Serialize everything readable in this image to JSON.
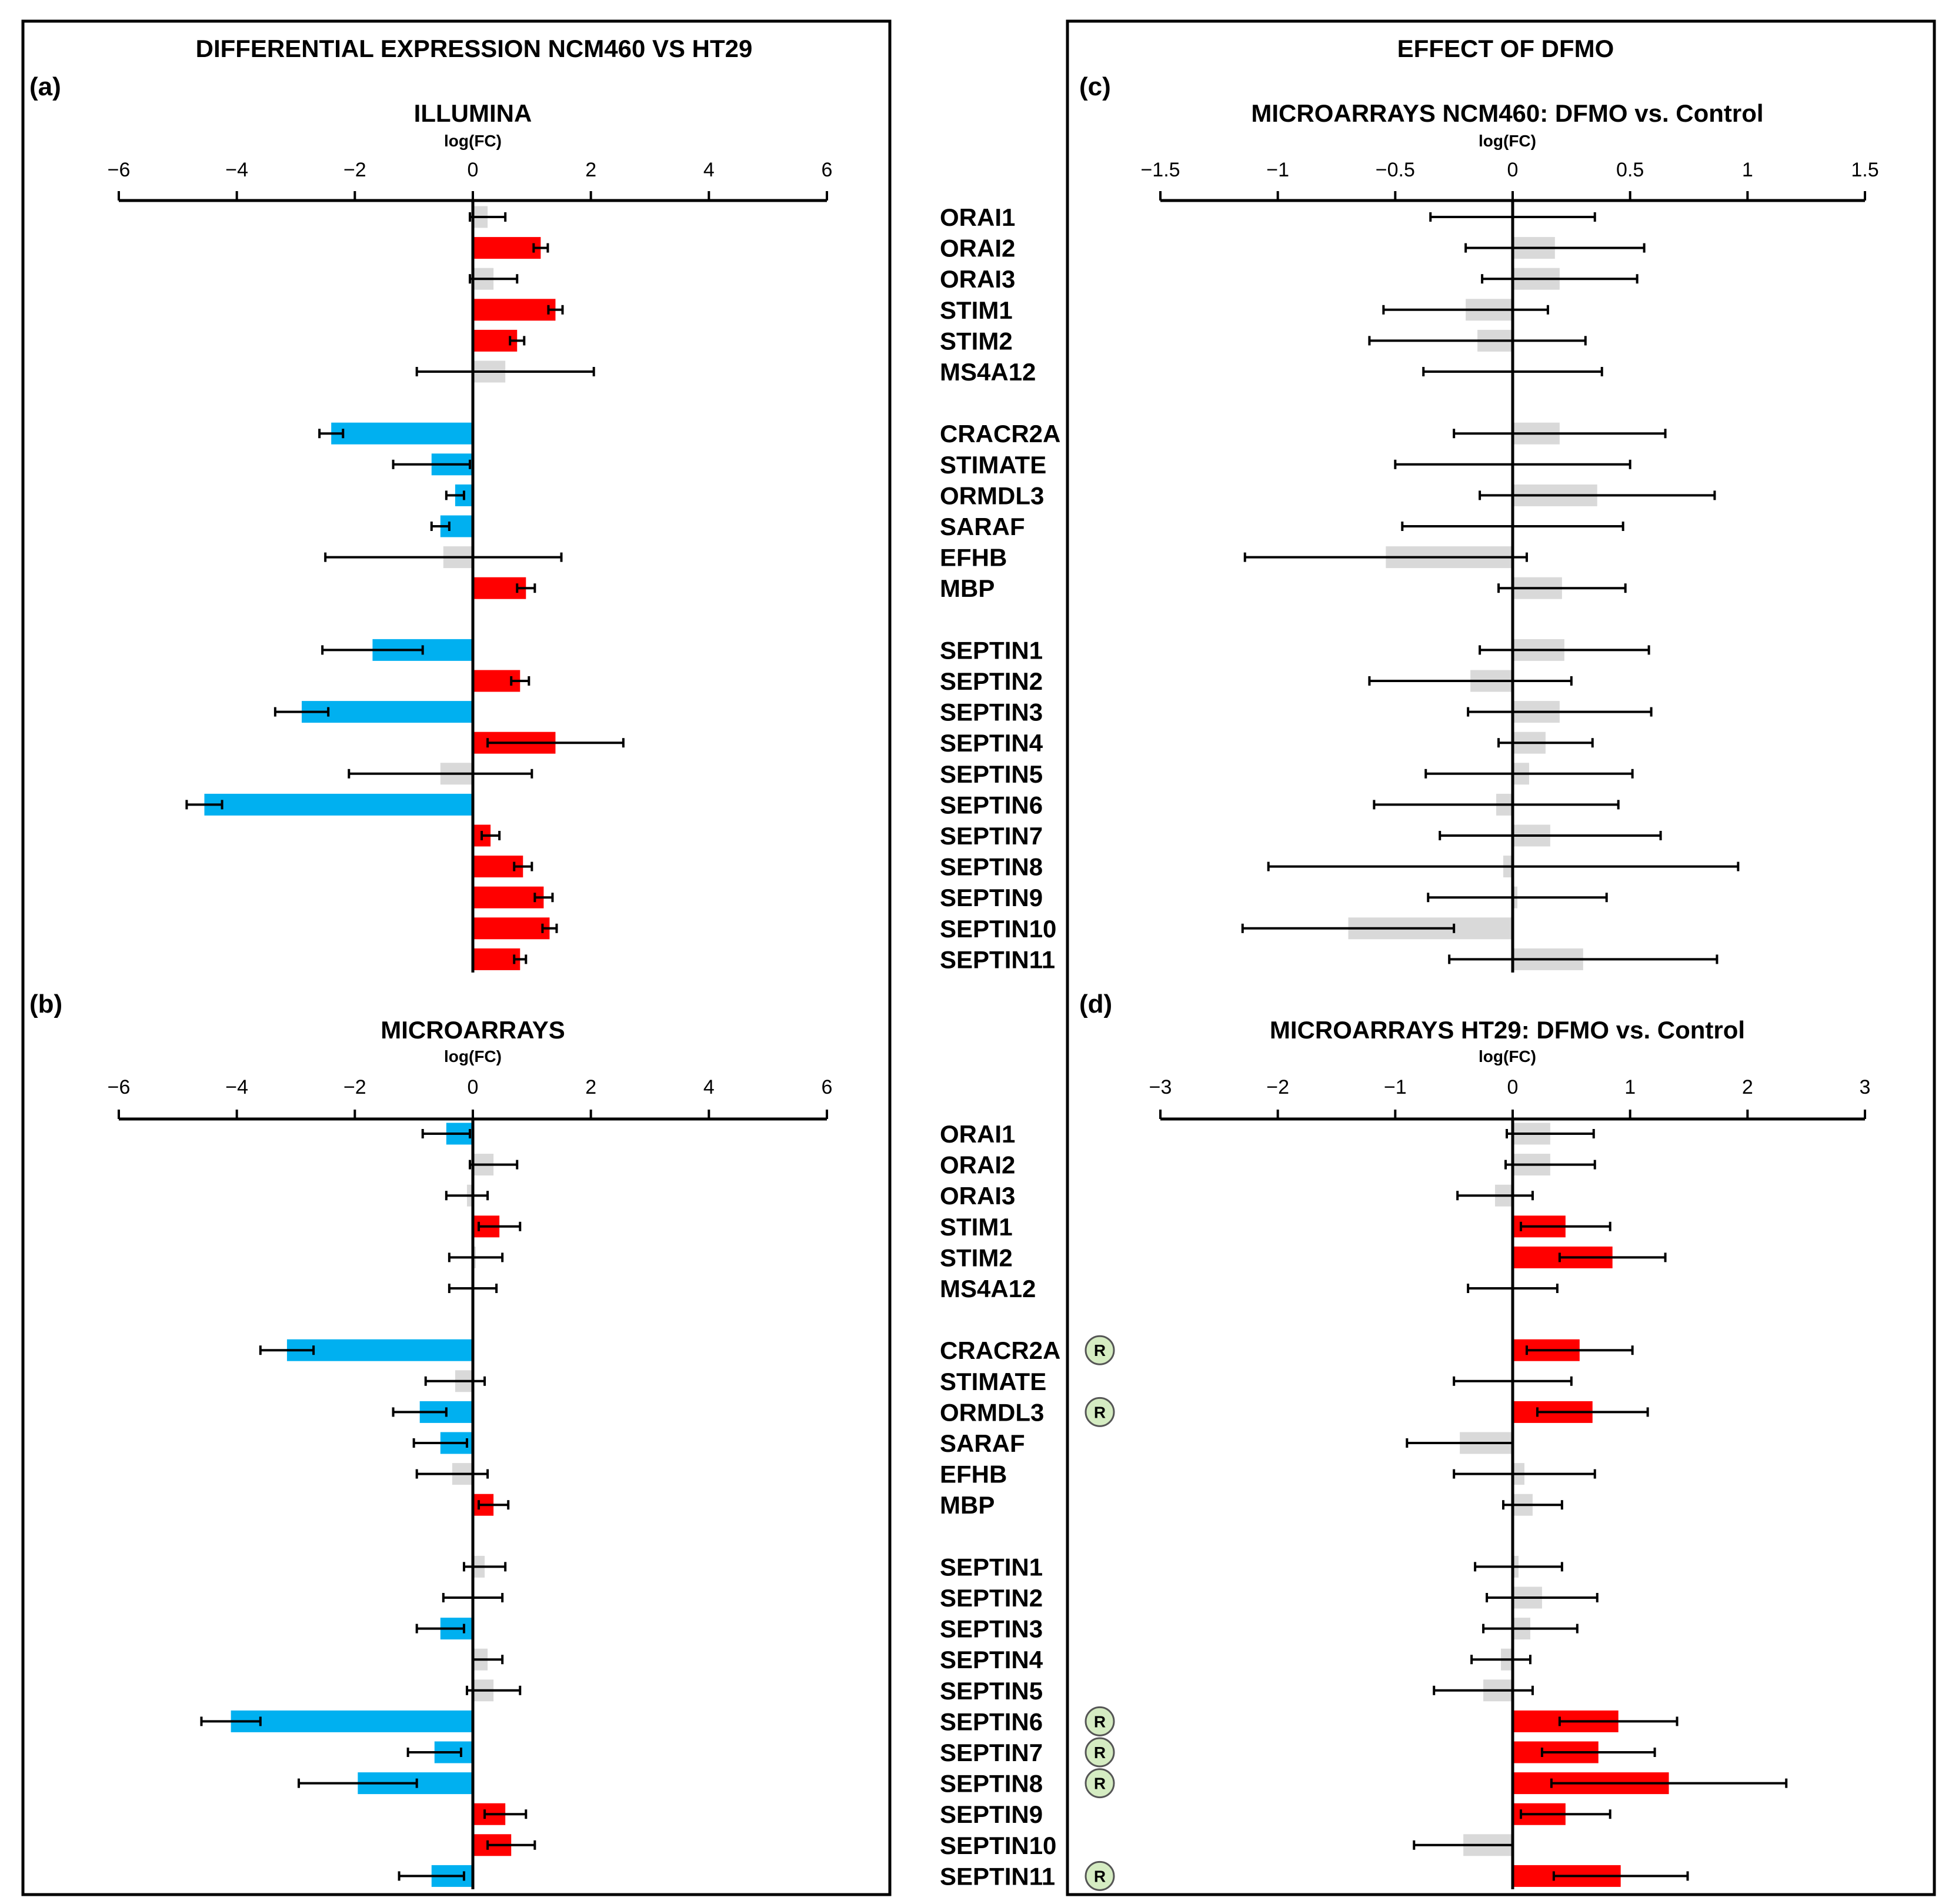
{
  "left_title": "DIFFERENTIAL EXPRESSION NCM460 VS HT29",
  "right_title": "EFFECT OF DFMO",
  "colors": {
    "up": "#ff0000",
    "down": "#00b0f0",
    "ns": "#d9d9d9",
    "badge_fill": "#d5ecc2",
    "badge_stroke": "#555555"
  },
  "chart_data": [
    {
      "id": "a",
      "panel_label": "(a)",
      "type": "bar",
      "orientation": "horizontal",
      "title": "ILLUMINA",
      "xlabel": "log(FC)",
      "xlim": [
        -6,
        6
      ],
      "xticks": [
        -6,
        -4,
        -2,
        0,
        2,
        4,
        6
      ],
      "xtick_labels": [
        "−6",
        "−4",
        "−2",
        "0",
        "2",
        "4",
        "6"
      ],
      "show_gene_labels": false,
      "bars": [
        {
          "v": 0.25,
          "e": 0.3,
          "c": "ns"
        },
        {
          "v": 1.15,
          "e": 0.12,
          "c": "up"
        },
        {
          "v": 0.35,
          "e": 0.4,
          "c": "ns"
        },
        {
          "v": 1.4,
          "e": 0.12,
          "c": "up"
        },
        {
          "v": 0.75,
          "e": 0.12,
          "c": "up"
        },
        {
          "v": 0.55,
          "e": 1.5,
          "c": "ns"
        },
        {
          "v": -2.4,
          "e": 0.2,
          "c": "down"
        },
        {
          "v": -0.7,
          "e": 0.65,
          "c": "down"
        },
        {
          "v": -0.3,
          "e": 0.15,
          "c": "down"
        },
        {
          "v": -0.55,
          "e": 0.15,
          "c": "down"
        },
        {
          "v": -0.5,
          "e": 2.0,
          "c": "ns"
        },
        {
          "v": 0.9,
          "e": 0.15,
          "c": "up"
        },
        {
          "v": -1.7,
          "e": 0.85,
          "c": "down"
        },
        {
          "v": 0.8,
          "e": 0.15,
          "c": "up"
        },
        {
          "v": -2.9,
          "e": 0.45,
          "c": "down"
        },
        {
          "v": 1.4,
          "e": 1.15,
          "c": "up"
        },
        {
          "v": -0.55,
          "e": 1.55,
          "c": "ns"
        },
        {
          "v": -4.55,
          "e": 0.3,
          "c": "down"
        },
        {
          "v": 0.3,
          "e": 0.15,
          "c": "up"
        },
        {
          "v": 0.85,
          "e": 0.15,
          "c": "up"
        },
        {
          "v": 1.2,
          "e": 0.15,
          "c": "up"
        },
        {
          "v": 1.3,
          "e": 0.12,
          "c": "up"
        },
        {
          "v": 0.8,
          "e": 0.1,
          "c": "up"
        }
      ]
    },
    {
      "id": "b",
      "panel_label": "(b)",
      "type": "bar",
      "orientation": "horizontal",
      "title": "MICROARRAYS",
      "xlabel": "log(FC)",
      "xlim": [
        -6,
        6
      ],
      "xticks": [
        -6,
        -4,
        -2,
        0,
        2,
        4,
        6
      ],
      "xtick_labels": [
        "−6",
        "−4",
        "−2",
        "0",
        "2",
        "4",
        "6"
      ],
      "show_gene_labels": false,
      "bars": [
        {
          "v": -0.45,
          "e": 0.4,
          "c": "down"
        },
        {
          "v": 0.35,
          "e": 0.4,
          "c": "ns"
        },
        {
          "v": -0.1,
          "e": 0.35,
          "c": "ns"
        },
        {
          "v": 0.45,
          "e": 0.35,
          "c": "up"
        },
        {
          "v": 0.05,
          "e": 0.45,
          "c": "ns"
        },
        {
          "v": 0.0,
          "e": 0.4,
          "c": "ns"
        },
        {
          "v": -3.15,
          "e": 0.45,
          "c": "down"
        },
        {
          "v": -0.3,
          "e": 0.5,
          "c": "ns"
        },
        {
          "v": -0.9,
          "e": 0.45,
          "c": "down"
        },
        {
          "v": -0.55,
          "e": 0.45,
          "c": "down"
        },
        {
          "v": -0.35,
          "e": 0.6,
          "c": "ns"
        },
        {
          "v": 0.35,
          "e": 0.25,
          "c": "up"
        },
        {
          "v": 0.2,
          "e": 0.35,
          "c": "ns"
        },
        {
          "v": 0.0,
          "e": 0.5,
          "c": "ns"
        },
        {
          "v": -0.55,
          "e": 0.4,
          "c": "down"
        },
        {
          "v": 0.25,
          "e": 0.25,
          "c": "ns"
        },
        {
          "v": 0.35,
          "e": 0.45,
          "c": "ns"
        },
        {
          "v": -4.1,
          "e": 0.5,
          "c": "down"
        },
        {
          "v": -0.65,
          "e": 0.45,
          "c": "down"
        },
        {
          "v": -1.95,
          "e": 1.0,
          "c": "down"
        },
        {
          "v": 0.55,
          "e": 0.35,
          "c": "up"
        },
        {
          "v": 0.65,
          "e": 0.4,
          "c": "up"
        },
        {
          "v": -0.7,
          "e": 0.55,
          "c": "down"
        }
      ]
    },
    {
      "id": "c",
      "panel_label": "(c)",
      "type": "bar",
      "orientation": "horizontal",
      "title": "MICROARRAYS NCM460: DFMO vs. Control",
      "xlabel": "log(FC)",
      "xlim": [
        -1.5,
        1.5
      ],
      "xticks": [
        -1.5,
        -1,
        -0.5,
        0,
        0.5,
        1,
        1.5
      ],
      "xtick_labels": [
        "−1.5",
        "−1",
        "−0.5",
        "0",
        "0.5",
        "1",
        "1.5"
      ],
      "show_gene_labels": true,
      "bars": [
        {
          "v": 0.0,
          "e": 0.35,
          "c": "ns"
        },
        {
          "v": 0.18,
          "e": 0.38,
          "c": "ns"
        },
        {
          "v": 0.2,
          "e": 0.33,
          "c": "ns"
        },
        {
          "v": -0.2,
          "e": 0.35,
          "c": "ns"
        },
        {
          "v": -0.15,
          "e": 0.46,
          "c": "ns"
        },
        {
          "v": 0.0,
          "e": 0.38,
          "c": "ns"
        },
        {
          "v": 0.2,
          "e": 0.45,
          "c": "ns"
        },
        {
          "v": 0.0,
          "e": 0.5,
          "c": "ns"
        },
        {
          "v": 0.36,
          "e": 0.5,
          "c": "ns"
        },
        {
          "v": 0.0,
          "e": 0.47,
          "c": "ns"
        },
        {
          "v": -0.54,
          "e": 0.6,
          "c": "ns"
        },
        {
          "v": 0.21,
          "e": 0.27,
          "c": "ns"
        },
        {
          "v": 0.22,
          "e": 0.36,
          "c": "ns"
        },
        {
          "v": -0.18,
          "e": 0.43,
          "c": "ns"
        },
        {
          "v": 0.2,
          "e": 0.39,
          "c": "ns"
        },
        {
          "v": 0.14,
          "e": 0.2,
          "c": "ns"
        },
        {
          "v": 0.07,
          "e": 0.44,
          "c": "ns"
        },
        {
          "v": -0.07,
          "e": 0.52,
          "c": "ns"
        },
        {
          "v": 0.16,
          "e": 0.47,
          "c": "ns"
        },
        {
          "v": -0.04,
          "e": 1.0,
          "c": "ns"
        },
        {
          "v": 0.02,
          "e": 0.38,
          "c": "ns"
        },
        {
          "v": -0.7,
          "e": 0.45,
          "c": "ns"
        },
        {
          "v": 0.3,
          "e": 0.57,
          "c": "ns"
        }
      ]
    },
    {
      "id": "d",
      "panel_label": "(d)",
      "type": "bar",
      "orientation": "horizontal",
      "title": "MICROARRAYS HT29: DFMO vs. Control",
      "xlabel": "log(FC)",
      "xlim": [
        -3,
        3
      ],
      "xticks": [
        -3,
        -2,
        -1,
        0,
        1,
        2,
        3
      ],
      "xtick_labels": [
        "−3",
        "−2",
        "−1",
        "0",
        "1",
        "2",
        "3"
      ],
      "show_gene_labels": true,
      "bars": [
        {
          "v": 0.32,
          "e": 0.37,
          "c": "ns"
        },
        {
          "v": 0.32,
          "e": 0.38,
          "c": "ns"
        },
        {
          "v": -0.15,
          "e": 0.32,
          "c": "ns"
        },
        {
          "v": 0.45,
          "e": 0.38,
          "c": "up"
        },
        {
          "v": 0.85,
          "e": 0.45,
          "c": "up"
        },
        {
          "v": 0.0,
          "e": 0.38,
          "c": "ns"
        },
        {
          "v": 0.57,
          "e": 0.45,
          "c": "up",
          "badge": "R"
        },
        {
          "v": 0.0,
          "e": 0.5,
          "c": "ns"
        },
        {
          "v": 0.68,
          "e": 0.47,
          "c": "up",
          "badge": "R"
        },
        {
          "v": -0.45,
          "e": 0.45,
          "c": "ns"
        },
        {
          "v": 0.1,
          "e": 0.6,
          "c": "ns"
        },
        {
          "v": 0.17,
          "e": 0.25,
          "c": "ns"
        },
        {
          "v": 0.05,
          "e": 0.37,
          "c": "ns"
        },
        {
          "v": 0.25,
          "e": 0.47,
          "c": "ns"
        },
        {
          "v": 0.15,
          "e": 0.4,
          "c": "ns"
        },
        {
          "v": -0.1,
          "e": 0.25,
          "c": "ns"
        },
        {
          "v": -0.25,
          "e": 0.42,
          "c": "ns"
        },
        {
          "v": 0.9,
          "e": 0.5,
          "c": "up",
          "badge": "R"
        },
        {
          "v": 0.73,
          "e": 0.48,
          "c": "up",
          "badge": "R"
        },
        {
          "v": 1.33,
          "e": 1.0,
          "c": "up",
          "badge": "R"
        },
        {
          "v": 0.45,
          "e": 0.38,
          "c": "up"
        },
        {
          "v": -0.42,
          "e": 0.42,
          "c": "ns"
        },
        {
          "v": 0.92,
          "e": 0.57,
          "c": "up",
          "badge": "R"
        }
      ]
    }
  ],
  "genes": [
    "ORAI1",
    "ORAI2",
    "ORAI3",
    "STIM1",
    "STIM2",
    "MS4A12",
    "CRACR2A",
    "STIMATE",
    "ORMDL3",
    "SARAF",
    "EFHB",
    "MBP",
    "SEPTIN1",
    "SEPTIN2",
    "SEPTIN3",
    "SEPTIN4",
    "SEPTIN5",
    "SEPTIN6",
    "SEPTIN7",
    "SEPTIN8",
    "SEPTIN9",
    "SEPTIN10",
    "SEPTIN11"
  ]
}
